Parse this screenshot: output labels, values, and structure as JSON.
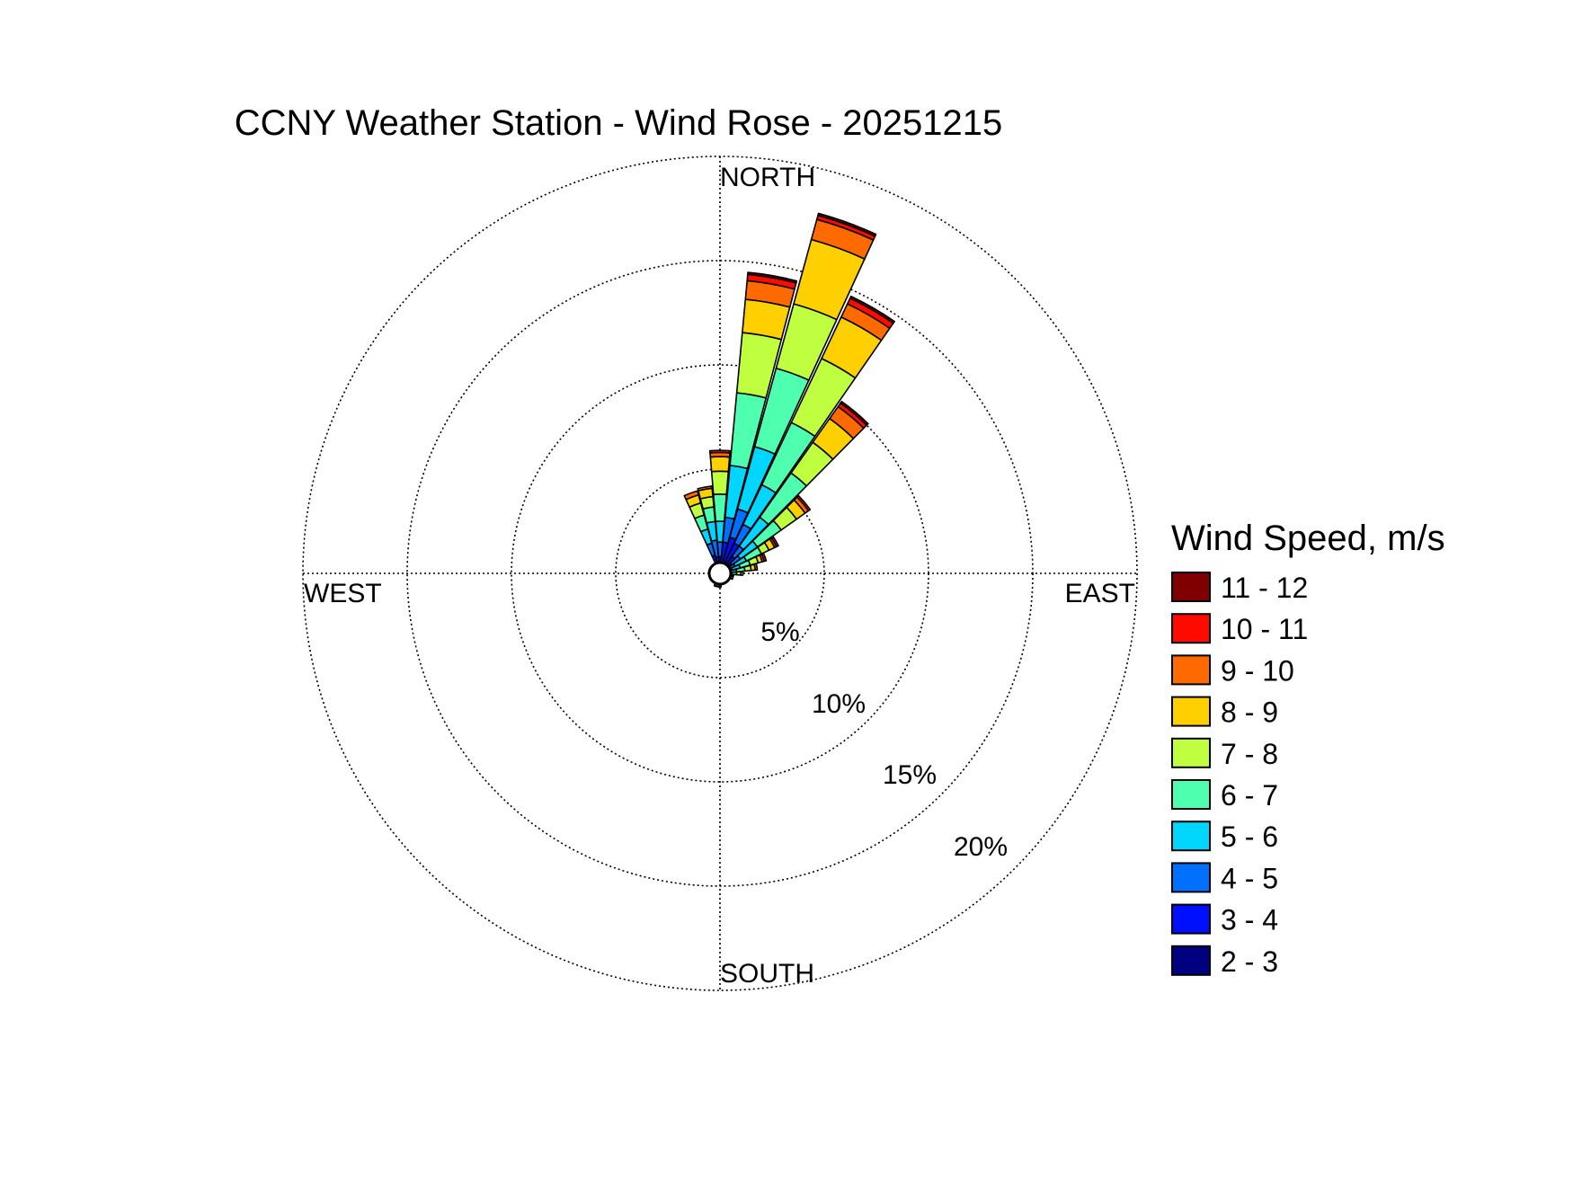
{
  "chart_data": {
    "type": "wind-rose",
    "title": "CCNY Weather Station - Wind Rose - 20251215",
    "directions": {
      "north": "NORTH",
      "south": "SOUTH",
      "east": "EAST",
      "west": "WEST"
    },
    "radial_axis": {
      "unit": "%",
      "max": 20,
      "rings": [
        5,
        10,
        15,
        20
      ],
      "tick_labels": [
        "5%",
        "10%",
        "15%",
        "20%"
      ]
    },
    "legend": {
      "title": "Wind Speed, m/s",
      "placement": "right",
      "bins": [
        {
          "label": "11 - 12",
          "color": "#800000"
        },
        {
          "label": "10 - 11",
          "color": "#ff0a00"
        },
        {
          "label": "9 - 10",
          "color": "#ff6a00"
        },
        {
          "label": "8 - 9",
          "color": "#ffd000"
        },
        {
          "label": "7 - 8",
          "color": "#bfff40"
        },
        {
          "label": "6 - 7",
          "color": "#4dffaf"
        },
        {
          "label": "5 - 6",
          "color": "#00d6ff"
        },
        {
          "label": "4 - 5",
          "color": "#0070ff"
        },
        {
          "label": "3 - 4",
          "color": "#0010ff"
        },
        {
          "label": "2 - 3",
          "color": "#000080"
        }
      ]
    },
    "bin_order_inner_to_outer": [
      "2 - 3",
      "3 - 4",
      "4 - 5",
      "5 - 6",
      "6 - 7",
      "7 - 8",
      "8 - 9",
      "9 - 10",
      "10 - 11",
      "11 - 12"
    ],
    "sectors": [
      {
        "direction_deg": 0,
        "cumulative_percent": [
          0.2,
          0.8,
          1.5,
          2.5,
          3.8,
          4.9,
          5.6,
          5.8,
          5.9,
          5.9
        ]
      },
      {
        "direction_deg": 10,
        "cumulative_percent": [
          0.5,
          1.5,
          2.7,
          5.2,
          8.7,
          11.6,
          13.2,
          14.1,
          14.4,
          14.5
        ]
      },
      {
        "direction_deg": 20,
        "cumulative_percent": [
          0.5,
          1.8,
          3.2,
          6.3,
          10.2,
          13.4,
          16.6,
          17.6,
          17.8,
          17.9
        ]
      },
      {
        "direction_deg": 30,
        "cumulative_percent": [
          0.5,
          1.6,
          2.6,
          4.7,
          8.0,
          11.4,
          13.6,
          14.3,
          14.6,
          14.7
        ]
      },
      {
        "direction_deg": 40,
        "cumulative_percent": [
          0.4,
          1.0,
          1.6,
          3.3,
          5.9,
          7.7,
          9.1,
          9.8,
          10.0,
          10.1
        ]
      },
      {
        "direction_deg": 50,
        "cumulative_percent": [
          0.3,
          0.7,
          1.2,
          2.2,
          3.6,
          4.5,
          5.0,
          5.2,
          5.3,
          5.3
        ]
      },
      {
        "direction_deg": 60,
        "cumulative_percent": [
          0.2,
          0.5,
          0.8,
          1.4,
          2.2,
          2.6,
          2.9,
          3.0,
          3.1,
          3.1
        ]
      },
      {
        "direction_deg": 70,
        "cumulative_percent": [
          0.2,
          0.4,
          0.6,
          1.0,
          1.5,
          1.9,
          2.1,
          2.2,
          2.3,
          2.3
        ]
      },
      {
        "direction_deg": 80,
        "cumulative_percent": [
          0.15,
          0.3,
          0.5,
          0.8,
          1.2,
          1.5,
          1.7,
          1.8,
          1.8,
          1.8
        ]
      },
      {
        "direction_deg": 90,
        "cumulative_percent": [
          0.1,
          0.2,
          0.35,
          0.5,
          0.8,
          1.0,
          1.1,
          1.1,
          1.1,
          1.1
        ]
      },
      {
        "direction_deg": 100,
        "cumulative_percent": [
          0.1,
          0.15,
          0.25,
          0.35,
          0.5,
          0.6,
          0.65,
          0.65,
          0.65,
          0.65
        ]
      },
      {
        "direction_deg": 110,
        "cumulative_percent": [
          0.05,
          0.1,
          0.15,
          0.2,
          0.3,
          0.35,
          0.35,
          0.35,
          0.35,
          0.35
        ]
      },
      {
        "direction_deg": 180,
        "cumulative_percent": [
          0.05,
          0.1,
          0.15,
          0.2,
          0.25,
          0.25,
          0.25,
          0.25,
          0.25,
          0.25
        ]
      },
      {
        "direction_deg": 190,
        "cumulative_percent": [
          0.05,
          0.1,
          0.15,
          0.2,
          0.25,
          0.25,
          0.25,
          0.25,
          0.25,
          0.25
        ]
      },
      {
        "direction_deg": 200,
        "cumulative_percent": [
          0.05,
          0.1,
          0.15,
          0.2,
          0.25,
          0.25,
          0.25,
          0.25,
          0.25,
          0.25
        ]
      },
      {
        "direction_deg": 340,
        "cumulative_percent": [
          0.3,
          0.9,
          1.5,
          2.2,
          2.9,
          3.5,
          3.9,
          4.1,
          4.1,
          4.1
        ]
      },
      {
        "direction_deg": 350,
        "cumulative_percent": [
          0.3,
          0.8,
          1.6,
          2.5,
          3.2,
          3.7,
          4.1,
          4.2,
          4.2,
          4.2
        ]
      }
    ]
  }
}
